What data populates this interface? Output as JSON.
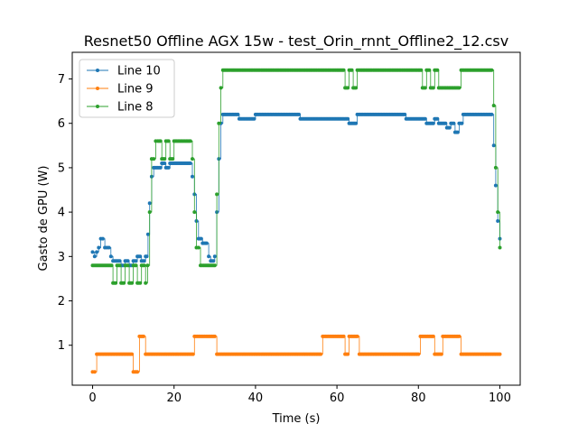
{
  "chart_data": {
    "type": "line",
    "title": "Resnet50 Offline AGX 15w - test_Orin_rnnt_Offline2_12.csv",
    "xlabel": "Time (s)",
    "ylabel": "Gasto de GPU (W)",
    "xlim": [
      -5,
      105
    ],
    "ylim": [
      0.1,
      7.6
    ],
    "xticks": [
      0,
      20,
      40,
      60,
      80,
      100
    ],
    "yticks": [
      1,
      2,
      3,
      4,
      5,
      6,
      7
    ],
    "legend_position": "upper-left",
    "grid": false,
    "series": [
      {
        "name": "Line 10",
        "color": "#1f77b4",
        "points": [
          [
            0,
            3.1
          ],
          [
            0.5,
            3.0
          ],
          [
            1,
            3.1
          ],
          [
            1.5,
            3.2
          ],
          [
            2,
            3.4
          ],
          [
            2.5,
            3.4
          ],
          [
            3,
            3.2
          ],
          [
            3.5,
            3.2
          ],
          [
            4,
            3.2
          ],
          [
            4.5,
            3.0
          ],
          [
            5,
            2.9
          ],
          [
            6,
            2.9
          ],
          [
            7,
            2.8
          ],
          [
            8,
            2.9
          ],
          [
            9,
            2.8
          ],
          [
            10,
            2.9
          ],
          [
            11,
            3.0
          ],
          [
            12,
            2.9
          ],
          [
            13,
            3.0
          ],
          [
            13.6,
            3.5
          ],
          [
            14,
            4.2
          ],
          [
            14.5,
            4.8
          ],
          [
            15,
            5.0
          ],
          [
            16,
            5.0
          ],
          [
            17,
            5.1
          ],
          [
            18,
            5.0
          ],
          [
            19,
            5.1
          ],
          [
            20,
            5.1
          ],
          [
            22,
            5.1
          ],
          [
            24,
            5.1
          ],
          [
            24.5,
            4.8
          ],
          [
            25,
            4.4
          ],
          [
            25.5,
            3.8
          ],
          [
            26,
            3.4
          ],
          [
            27,
            3.3
          ],
          [
            28,
            3.3
          ],
          [
            28.5,
            3.0
          ],
          [
            29,
            2.9
          ],
          [
            30,
            3.0
          ],
          [
            30.5,
            4.0
          ],
          [
            31,
            5.2
          ],
          [
            31.5,
            6.0
          ],
          [
            32,
            6.2
          ],
          [
            33,
            6.2
          ],
          [
            35,
            6.2
          ],
          [
            36,
            6.1
          ],
          [
            38,
            6.1
          ],
          [
            40,
            6.2
          ],
          [
            42,
            6.2
          ],
          [
            45,
            6.2
          ],
          [
            48,
            6.2
          ],
          [
            50,
            6.2
          ],
          [
            51,
            6.1
          ],
          [
            53,
            6.1
          ],
          [
            55,
            6.1
          ],
          [
            57,
            6.1
          ],
          [
            60,
            6.1
          ],
          [
            62,
            6.1
          ],
          [
            63,
            6.0
          ],
          [
            64,
            6.0
          ],
          [
            65,
            6.2
          ],
          [
            67,
            6.2
          ],
          [
            70,
            6.2
          ],
          [
            73,
            6.2
          ],
          [
            75,
            6.2
          ],
          [
            77,
            6.1
          ],
          [
            80,
            6.1
          ],
          [
            82,
            6.0
          ],
          [
            84,
            6.1
          ],
          [
            85,
            6.0
          ],
          [
            87,
            5.9
          ],
          [
            88,
            6.0
          ],
          [
            89,
            5.8
          ],
          [
            90,
            6.0
          ],
          [
            91,
            6.2
          ],
          [
            93,
            6.2
          ],
          [
            95,
            6.2
          ],
          [
            97,
            6.2
          ],
          [
            98,
            6.2
          ],
          [
            98.5,
            5.5
          ],
          [
            99,
            4.6
          ],
          [
            99.5,
            3.8
          ],
          [
            100,
            3.4
          ]
        ]
      },
      {
        "name": "Line 9",
        "color": "#ff7f0e",
        "points": [
          [
            0,
            0.4
          ],
          [
            0.5,
            0.4
          ],
          [
            1,
            0.8
          ],
          [
            3,
            0.8
          ],
          [
            5,
            0.8
          ],
          [
            7,
            0.8
          ],
          [
            9,
            0.8
          ],
          [
            10,
            0.4
          ],
          [
            11,
            0.4
          ],
          [
            11.5,
            1.2
          ],
          [
            12.5,
            1.2
          ],
          [
            13,
            0.8
          ],
          [
            15,
            0.8
          ],
          [
            20,
            0.8
          ],
          [
            24,
            0.8
          ],
          [
            25,
            1.2
          ],
          [
            30,
            1.2
          ],
          [
            30.5,
            0.8
          ],
          [
            35,
            0.8
          ],
          [
            40,
            0.8
          ],
          [
            45,
            0.8
          ],
          [
            50,
            0.8
          ],
          [
            56,
            0.8
          ],
          [
            56.5,
            1.2
          ],
          [
            60,
            1.2
          ],
          [
            62,
            0.8
          ],
          [
            63,
            1.2
          ],
          [
            65,
            1.2
          ],
          [
            65.5,
            0.8
          ],
          [
            70,
            0.8
          ],
          [
            75,
            0.8
          ],
          [
            80,
            0.8
          ],
          [
            80.5,
            1.2
          ],
          [
            83,
            1.2
          ],
          [
            84,
            0.8
          ],
          [
            86,
            1.2
          ],
          [
            90,
            1.2
          ],
          [
            90.5,
            0.8
          ],
          [
            95,
            0.8
          ],
          [
            100,
            0.8
          ]
        ]
      },
      {
        "name": "Line 8",
        "color": "#2ca02c",
        "points": [
          [
            0,
            2.8
          ],
          [
            2,
            2.8
          ],
          [
            4,
            2.8
          ],
          [
            5,
            2.4
          ],
          [
            6,
            2.8
          ],
          [
            7,
            2.4
          ],
          [
            8,
            2.8
          ],
          [
            9,
            2.4
          ],
          [
            10,
            2.8
          ],
          [
            11,
            2.4
          ],
          [
            12,
            2.8
          ],
          [
            13,
            2.4
          ],
          [
            13.5,
            2.8
          ],
          [
            14,
            4.0
          ],
          [
            14.5,
            5.2
          ],
          [
            15,
            5.2
          ],
          [
            15.5,
            5.6
          ],
          [
            16,
            5.6
          ],
          [
            17,
            5.2
          ],
          [
            18,
            5.6
          ],
          [
            19,
            5.2
          ],
          [
            20,
            5.6
          ],
          [
            22,
            5.6
          ],
          [
            24,
            5.6
          ],
          [
            24.5,
            5.2
          ],
          [
            25,
            4.0
          ],
          [
            25.5,
            3.2
          ],
          [
            26,
            3.2
          ],
          [
            26.5,
            2.8
          ],
          [
            28,
            2.8
          ],
          [
            30,
            2.8
          ],
          [
            30.5,
            4.4
          ],
          [
            31,
            6.0
          ],
          [
            31.5,
            6.8
          ],
          [
            32,
            7.2
          ],
          [
            35,
            7.2
          ],
          [
            40,
            7.2
          ],
          [
            45,
            7.2
          ],
          [
            50,
            7.2
          ],
          [
            55,
            7.2
          ],
          [
            60,
            7.2
          ],
          [
            61,
            7.2
          ],
          [
            62,
            6.8
          ],
          [
            63,
            7.2
          ],
          [
            64,
            6.8
          ],
          [
            65,
            7.2
          ],
          [
            70,
            7.2
          ],
          [
            75,
            7.2
          ],
          [
            80,
            7.2
          ],
          [
            81,
            6.8
          ],
          [
            82,
            7.2
          ],
          [
            83,
            6.8
          ],
          [
            84,
            7.2
          ],
          [
            85,
            6.8
          ],
          [
            90,
            6.8
          ],
          [
            90.5,
            7.2
          ],
          [
            95,
            7.2
          ],
          [
            98,
            7.2
          ],
          [
            98.5,
            6.4
          ],
          [
            99,
            5.0
          ],
          [
            99.5,
            4.0
          ],
          [
            100,
            3.2
          ]
        ]
      }
    ]
  }
}
